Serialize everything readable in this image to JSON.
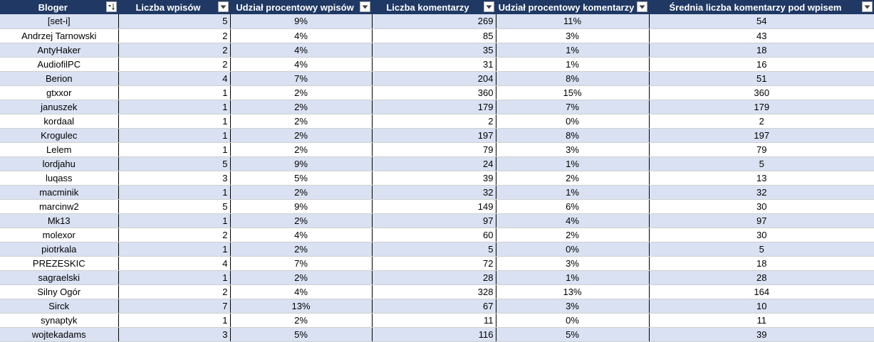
{
  "headers": [
    {
      "label": "Bloger",
      "icon": "sort-filter-icon"
    },
    {
      "label": "Liczba wpisów",
      "icon": "filter-dropdown-icon"
    },
    {
      "label": "Udział procentowy wpisów",
      "icon": "filter-dropdown-icon"
    },
    {
      "label": "Liczba komentarzy",
      "icon": "filter-dropdown-icon"
    },
    {
      "label": "Udział procentowy komentarzy",
      "icon": "filter-dropdown-icon"
    },
    {
      "label": "Średnia liczba komentarzy pod wpisem",
      "icon": "filter-dropdown-icon"
    }
  ],
  "colors": {
    "header_bg": "#203864",
    "header_text": "#ffffff",
    "band_row": "#d9e1f2",
    "plain_row": "#ffffff"
  },
  "rows": [
    [
      "[set-i]",
      "5",
      "9%",
      "269",
      "11%",
      "54"
    ],
    [
      "Andrzej Tarnowski",
      "2",
      "4%",
      "85",
      "3%",
      "43"
    ],
    [
      "AntyHaker",
      "2",
      "4%",
      "35",
      "1%",
      "18"
    ],
    [
      "AudiofilPC",
      "2",
      "4%",
      "31",
      "1%",
      "16"
    ],
    [
      "Berion",
      "4",
      "7%",
      "204",
      "8%",
      "51"
    ],
    [
      "gtxxor",
      "1",
      "2%",
      "360",
      "15%",
      "360"
    ],
    [
      "januszek",
      "1",
      "2%",
      "179",
      "7%",
      "179"
    ],
    [
      "kordaal",
      "1",
      "2%",
      "2",
      "0%",
      "2"
    ],
    [
      "Krogulec",
      "1",
      "2%",
      "197",
      "8%",
      "197"
    ],
    [
      "Lelem",
      "1",
      "2%",
      "79",
      "3%",
      "79"
    ],
    [
      "lordjahu",
      "5",
      "9%",
      "24",
      "1%",
      "5"
    ],
    [
      "luqass",
      "3",
      "5%",
      "39",
      "2%",
      "13"
    ],
    [
      "macminik",
      "1",
      "2%",
      "32",
      "1%",
      "32"
    ],
    [
      "marcinw2",
      "5",
      "9%",
      "149",
      "6%",
      "30"
    ],
    [
      "Mk13",
      "1",
      "2%",
      "97",
      "4%",
      "97"
    ],
    [
      "molexor",
      "2",
      "4%",
      "60",
      "2%",
      "30"
    ],
    [
      "piotrkala",
      "1",
      "2%",
      "5",
      "0%",
      "5"
    ],
    [
      "PREZESKIC",
      "4",
      "7%",
      "72",
      "3%",
      "18"
    ],
    [
      "sagraelski",
      "1",
      "2%",
      "28",
      "1%",
      "28"
    ],
    [
      "Silny Ogór",
      "2",
      "4%",
      "328",
      "13%",
      "164"
    ],
    [
      "Sirck",
      "7",
      "13%",
      "67",
      "3%",
      "10"
    ],
    [
      "synaptyk",
      "1",
      "2%",
      "11",
      "0%",
      "11"
    ],
    [
      "wojtekadams",
      "3",
      "5%",
      "116",
      "5%",
      "39"
    ]
  ]
}
